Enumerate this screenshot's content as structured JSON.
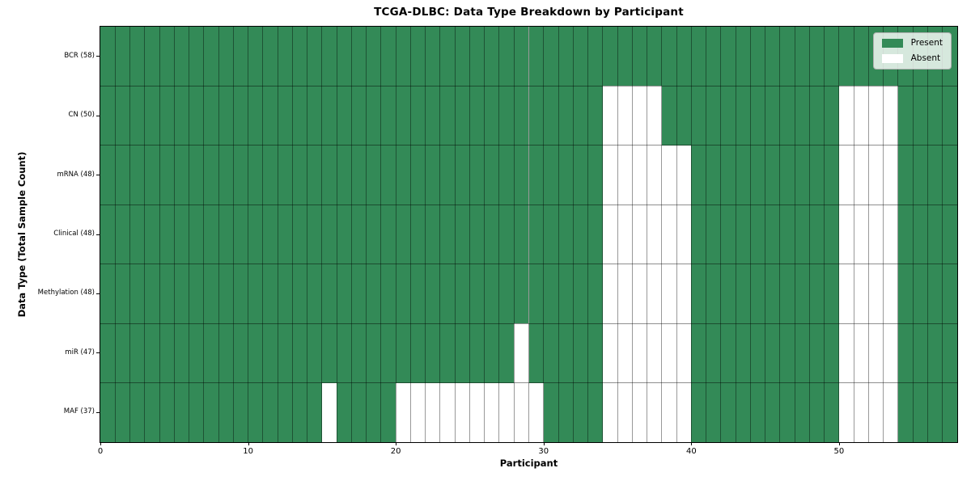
{
  "chart_data": {
    "type": "heatmap",
    "title": "TCGA-DLBC: Data Type Breakdown by Participant",
    "xlabel": "Participant",
    "ylabel": "Data Type (Total Sample Count)",
    "x_ticks": [
      0,
      10,
      20,
      30,
      40,
      50
    ],
    "x_range": [
      0,
      58
    ],
    "n_participants": 58,
    "grid": true,
    "legend_position": "upper right",
    "legend": [
      {
        "label": "Present",
        "color": "#338a57"
      },
      {
        "label": "Absent",
        "color": "#ffffff"
      }
    ],
    "colors": {
      "present": "#338a57",
      "absent": "#ffffff",
      "gridline": "rgba(0,0,0,0.40)",
      "spine": "#000000",
      "legend_background": "rgba(255,255,255,0.8)",
      "legend_border": "#b0b0b0"
    },
    "rows": [
      {
        "label": "BCR (58)",
        "data_type": "BCR",
        "present_count": 58,
        "absent_participants": []
      },
      {
        "label": "CN (50)",
        "data_type": "CN",
        "present_count": 50,
        "absent_participants": [
          34,
          35,
          36,
          37,
          50,
          51,
          52,
          53
        ]
      },
      {
        "label": "mRNA (48)",
        "data_type": "mRNA",
        "present_count": 48,
        "absent_participants": [
          34,
          35,
          36,
          37,
          38,
          39,
          50,
          51,
          52,
          53
        ]
      },
      {
        "label": "Clinical (48)",
        "data_type": "Clinical",
        "present_count": 48,
        "absent_participants": [
          34,
          35,
          36,
          37,
          38,
          39,
          50,
          51,
          52,
          53
        ]
      },
      {
        "label": "Methylation (48)",
        "data_type": "Methylation",
        "present_count": 48,
        "absent_participants": [
          34,
          35,
          36,
          37,
          38,
          39,
          50,
          51,
          52,
          53
        ]
      },
      {
        "label": "miR (47)",
        "data_type": "miR",
        "present_count": 47,
        "absent_participants": [
          28,
          34,
          35,
          36,
          37,
          38,
          39,
          50,
          51,
          52,
          53
        ]
      },
      {
        "label": "MAF (37)",
        "data_type": "MAF",
        "present_count": 37,
        "absent_participants": [
          15,
          20,
          21,
          22,
          23,
          24,
          25,
          26,
          27,
          28,
          29,
          34,
          35,
          36,
          37,
          38,
          39,
          50,
          51,
          52,
          53
        ]
      }
    ]
  }
}
